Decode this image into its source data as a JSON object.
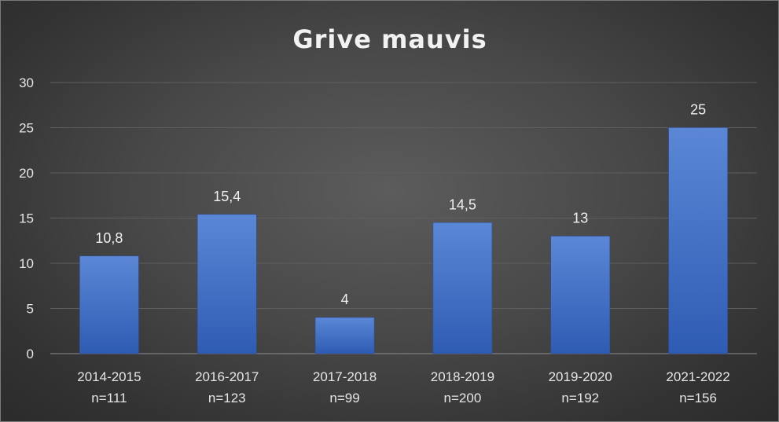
{
  "chart_data": {
    "type": "bar",
    "title": "Grive mauvis",
    "xlabel": "",
    "ylabel": "",
    "categories": [
      [
        "2014-2015",
        "n=111"
      ],
      [
        "2016-2017",
        "n=123"
      ],
      [
        "2017-2018",
        "n=99"
      ],
      [
        "2018-2019",
        "n=200"
      ],
      [
        "2019-2020",
        "n=192"
      ],
      [
        "2021-2022",
        "n=156"
      ]
    ],
    "values": [
      10.8,
      15.4,
      4,
      14.5,
      13,
      25
    ],
    "value_labels": [
      "10,8",
      "15,4",
      "4",
      "14,5",
      "13",
      "25"
    ],
    "ylim": [
      0,
      30
    ],
    "yticks": [
      0,
      5,
      10,
      15,
      20,
      25,
      30
    ],
    "grid": true,
    "legend": "none",
    "colors": {
      "bar": "#4472c4",
      "background": "#404040",
      "text": "#e6e6e6",
      "grid": "#5e5e5e"
    }
  }
}
